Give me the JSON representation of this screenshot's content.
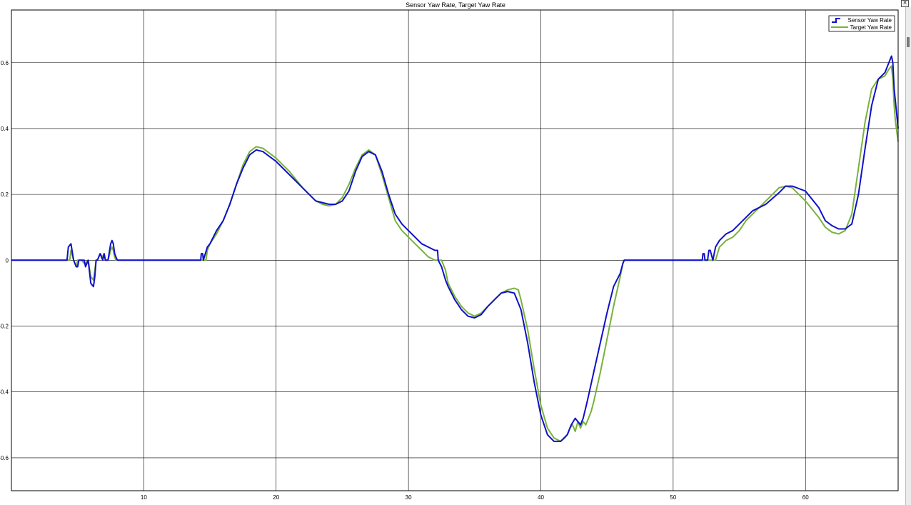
{
  "window": {
    "close_glyph": "✕"
  },
  "chart_data": {
    "type": "line",
    "title": "Sensor Yaw Rate, Target Yaw Rate",
    "xlabel": "",
    "ylabel": "",
    "xlim": [
      0,
      67
    ],
    "ylim": [
      -0.7,
      0.76
    ],
    "xticks": [
      10,
      20,
      30,
      40,
      50,
      60
    ],
    "yticks": [
      -0.6,
      -0.4,
      -0.2,
      0,
      0.2,
      0.4,
      0.6
    ],
    "xtick_labels": [
      "10",
      "20",
      "30",
      "40",
      "50",
      "60"
    ],
    "ytick_labels": [
      "-0.6",
      "-0.4",
      "-0.2",
      "0",
      "0.2",
      "0.4",
      "0.6"
    ],
    "grid": true,
    "legend_position": "top-right",
    "series": [
      {
        "name": "Sensor Yaw Rate",
        "color": "#1010c8",
        "legend_style": "step",
        "x": [
          0,
          4.2,
          4.3,
          4.5,
          4.7,
          4.9,
          5.0,
          5.1,
          5.3,
          5.5,
          5.6,
          5.8,
          6.0,
          6.2,
          6.3,
          6.4,
          6.5,
          6.7,
          6.9,
          7.0,
          7.1,
          7.3,
          7.5,
          7.6,
          7.7,
          7.8,
          7.9,
          8.0,
          8.1,
          8.2,
          14.3,
          14.35,
          14.45,
          14.5,
          14.8,
          15.0,
          15.5,
          16.0,
          16.5,
          17.0,
          17.5,
          18.0,
          18.5,
          19.0,
          20.0,
          21.0,
          22.0,
          23.0,
          24.0,
          24.5,
          25.0,
          25.5,
          26.0,
          26.5,
          27.0,
          27.5,
          28.0,
          28.5,
          29.0,
          29.5,
          30.0,
          30.5,
          31.0,
          31.5,
          32.0,
          32.2,
          32.25,
          32.5,
          32.8,
          33.0,
          33.5,
          34.0,
          34.5,
          35.0,
          35.5,
          36.0,
          36.5,
          37.0,
          37.5,
          38.0,
          38.5,
          39.0,
          39.5,
          40.0,
          40.5,
          41.0,
          41.5,
          42.0,
          42.3,
          42.6,
          42.8,
          43.0,
          43.2,
          43.5,
          44.0,
          44.5,
          45.0,
          45.5,
          46.0,
          46.2,
          46.3,
          52.2,
          52.25,
          52.35,
          52.4,
          52.6,
          52.7,
          52.8,
          53.0,
          53.2,
          53.5,
          54.0,
          54.5,
          55.0,
          55.5,
          56.0,
          57.0,
          58.0,
          58.5,
          59.0,
          60.0,
          61.0,
          61.5,
          62.0,
          62.5,
          63.0,
          63.5,
          64.0,
          64.5,
          65.0,
          65.5,
          66.0,
          66.3,
          66.5,
          66.6,
          66.7,
          66.8,
          67.0
        ],
        "y": [
          0,
          0,
          0.04,
          0.05,
          0,
          -0.02,
          -0.02,
          0,
          0,
          0,
          -0.02,
          0,
          -0.07,
          -0.08,
          -0.05,
          0,
          0,
          0.02,
          0,
          0.02,
          0,
          0,
          0.05,
          0.06,
          0.05,
          0.02,
          0.01,
          0,
          0,
          0,
          0,
          0.02,
          0.02,
          0,
          0.04,
          0.05,
          0.09,
          0.12,
          0.17,
          0.23,
          0.28,
          0.32,
          0.335,
          0.33,
          0.3,
          0.26,
          0.22,
          0.18,
          0.17,
          0.17,
          0.18,
          0.21,
          0.27,
          0.315,
          0.33,
          0.32,
          0.27,
          0.2,
          0.14,
          0.11,
          0.09,
          0.07,
          0.05,
          0.04,
          0.03,
          0.03,
          0,
          -0.02,
          -0.06,
          -0.08,
          -0.12,
          -0.15,
          -0.17,
          -0.175,
          -0.165,
          -0.14,
          -0.12,
          -0.1,
          -0.095,
          -0.1,
          -0.15,
          -0.25,
          -0.37,
          -0.47,
          -0.53,
          -0.55,
          -0.55,
          -0.53,
          -0.5,
          -0.48,
          -0.49,
          -0.5,
          -0.48,
          -0.43,
          -0.34,
          -0.25,
          -0.16,
          -0.08,
          -0.04,
          -0.01,
          0,
          0,
          0.02,
          0.02,
          0,
          0,
          0.03,
          0.03,
          0,
          0.04,
          0.06,
          0.08,
          0.09,
          0.11,
          0.13,
          0.15,
          0.17,
          0.205,
          0.225,
          0.225,
          0.21,
          0.16,
          0.12,
          0.105,
          0.095,
          0.095,
          0.11,
          0.2,
          0.34,
          0.47,
          0.55,
          0.57,
          0.6,
          0.62,
          0.6,
          0.52,
          0.48,
          0.4
        ]
      },
      {
        "name": "Target Yaw Rate",
        "color": "#77b33a",
        "legend_style": "line",
        "x": [
          0,
          4.4,
          4.5,
          4.7,
          4.9,
          5.0,
          5.1,
          5.3,
          5.5,
          5.6,
          5.8,
          6.0,
          6.2,
          6.3,
          6.4,
          6.5,
          6.7,
          6.9,
          7.0,
          7.1,
          7.3,
          7.5,
          7.6,
          7.7,
          7.8,
          7.9,
          8.0,
          8.1,
          14.7,
          14.8,
          15.0,
          15.5,
          16.0,
          16.5,
          17.0,
          17.5,
          18.0,
          18.5,
          19.0,
          20.0,
          21.0,
          22.0,
          23.0,
          23.5,
          24.0,
          24.5,
          25.0,
          25.5,
          26.0,
          26.5,
          27.0,
          27.5,
          28.0,
          28.5,
          29.0,
          29.5,
          30.0,
          30.5,
          31.0,
          31.5,
          32.0,
          32.5,
          32.8,
          33.0,
          33.5,
          34.0,
          34.5,
          35.0,
          35.5,
          36.0,
          36.5,
          37.0,
          37.5,
          38.0,
          38.3,
          38.5,
          39.0,
          39.5,
          40.0,
          40.5,
          41.0,
          41.5,
          41.8,
          42.0,
          42.2,
          42.4,
          42.6,
          42.8,
          43.0,
          43.2,
          43.4,
          43.6,
          43.8,
          44.0,
          44.5,
          45.0,
          45.5,
          46.0,
          46.2,
          46.3,
          53.2,
          53.5,
          54.0,
          54.5,
          55.0,
          55.5,
          56.0,
          57.0,
          58.0,
          58.5,
          59.0,
          60.0,
          61.0,
          61.5,
          62.0,
          62.5,
          63.0,
          63.5,
          64.0,
          64.5,
          65.0,
          65.5,
          66.0,
          66.3,
          66.5,
          66.6,
          66.7,
          66.8,
          67.0
        ],
        "y": [
          0,
          0,
          0.03,
          0,
          -0.02,
          0,
          0,
          0,
          -0.01,
          -0.01,
          0,
          -0.05,
          -0.06,
          -0.03,
          0,
          0,
          0.02,
          0.01,
          0.02,
          0,
          0,
          0.03,
          0.04,
          0.03,
          0.01,
          0,
          0,
          0,
          0,
          0.03,
          0.05,
          0.08,
          0.12,
          0.17,
          0.23,
          0.29,
          0.33,
          0.345,
          0.34,
          0.31,
          0.27,
          0.22,
          0.18,
          0.17,
          0.165,
          0.17,
          0.19,
          0.23,
          0.28,
          0.32,
          0.335,
          0.32,
          0.26,
          0.19,
          0.12,
          0.09,
          0.07,
          0.05,
          0.03,
          0.01,
          0,
          0,
          -0.03,
          -0.07,
          -0.11,
          -0.14,
          -0.16,
          -0.17,
          -0.16,
          -0.14,
          -0.12,
          -0.1,
          -0.09,
          -0.085,
          -0.09,
          -0.12,
          -0.21,
          -0.33,
          -0.44,
          -0.51,
          -0.54,
          -0.55,
          -0.54,
          -0.53,
          -0.51,
          -0.5,
          -0.52,
          -0.49,
          -0.51,
          -0.49,
          -0.5,
          -0.48,
          -0.46,
          -0.43,
          -0.34,
          -0.24,
          -0.14,
          -0.05,
          -0.01,
          0,
          0,
          0.04,
          0.06,
          0.07,
          0.09,
          0.12,
          0.14,
          0.18,
          0.22,
          0.225,
          0.22,
          0.18,
          0.13,
          0.1,
          0.085,
          0.08,
          0.09,
          0.14,
          0.28,
          0.42,
          0.52,
          0.55,
          0.56,
          0.58,
          0.59,
          0.55,
          0.47,
          0.42,
          0.36
        ]
      }
    ]
  }
}
